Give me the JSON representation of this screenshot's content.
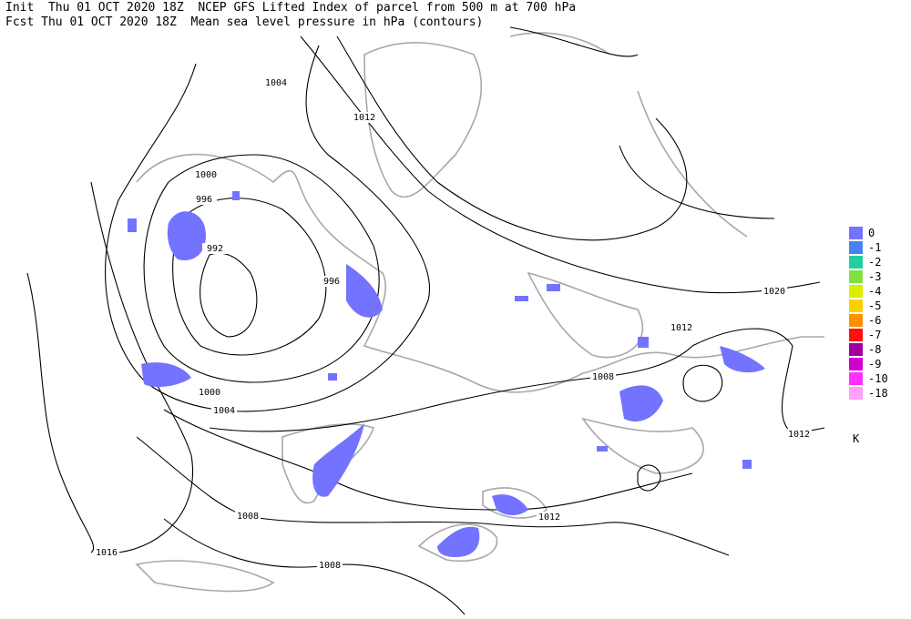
{
  "header": {
    "line1": "Init  Thu 01 OCT 2020 18Z  NCEP GFS Lifted Index of parcel from 500 m at 700 hPa",
    "line2": "Fcst Thu 01 OCT 2020 18Z  Mean sea level pressure in hPa (contours)"
  },
  "contour_labels": [
    "1004",
    "1012",
    "1000",
    "996",
    "992",
    "996",
    "1000",
    "1004",
    "1020",
    "1012",
    "1008",
    "1012",
    "1008",
    "1012",
    "1016",
    "1008"
  ],
  "legend": {
    "items": [
      {
        "label": "0",
        "color": "#7373ff"
      },
      {
        "label": "-1",
        "color": "#4682f0"
      },
      {
        "label": "-2",
        "color": "#20d0a0"
      },
      {
        "label": "-3",
        "color": "#80e040"
      },
      {
        "label": "-4",
        "color": "#d8f000"
      },
      {
        "label": "-5",
        "color": "#ffd000"
      },
      {
        "label": "-6",
        "color": "#ff9000"
      },
      {
        "label": "-7",
        "color": "#ff1010"
      },
      {
        "label": "-8",
        "color": "#a000a0"
      },
      {
        "label": "-9",
        "color": "#d000d0"
      },
      {
        "label": "-10",
        "color": "#ff30ff"
      },
      {
        "label": "-18",
        "color": "#ffa0ff"
      }
    ],
    "unit": "K"
  }
}
